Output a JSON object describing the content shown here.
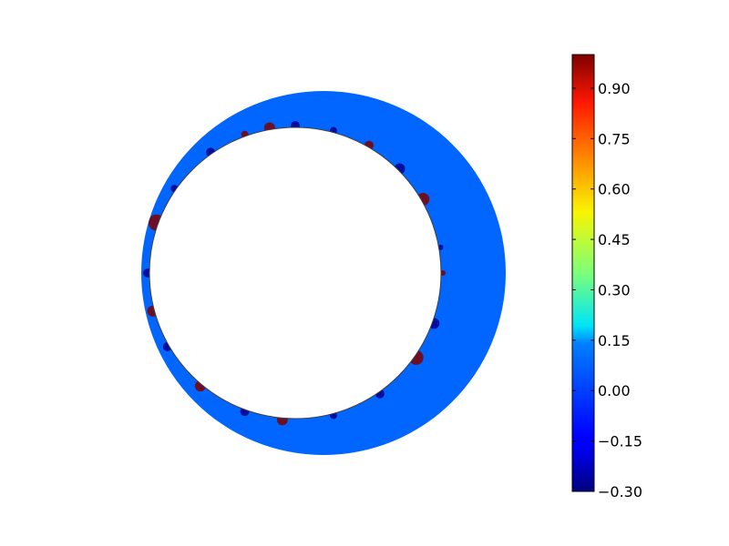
{
  "chart_data": {
    "type": "heatmap",
    "title": "",
    "description_of_field": "annular domain between an outer circle and an offset inner circle, field mostly near 0 with a thin band of extreme values along the inner boundary",
    "field": {
      "background_value": 0.0,
      "min_value": -0.3,
      "max_value": 1.0
    },
    "colorbar": {
      "colormap": "jet",
      "vmin": -0.3,
      "vmax": 1.0,
      "ticks": [
        -0.3,
        -0.15,
        0.0,
        0.15,
        0.3,
        0.45,
        0.6,
        0.75,
        0.9
      ],
      "tick_labels": [
        "−0.30",
        "−0.15",
        "0.00",
        "0.15",
        "0.30",
        "0.45",
        "0.60",
        "0.75",
        "0.90"
      ]
    },
    "colors": {
      "background_fill": "#0066ff",
      "inner_hole": "#ffffff",
      "hot_spot": "#7f0000",
      "cold_spot": "#00008f"
    }
  }
}
